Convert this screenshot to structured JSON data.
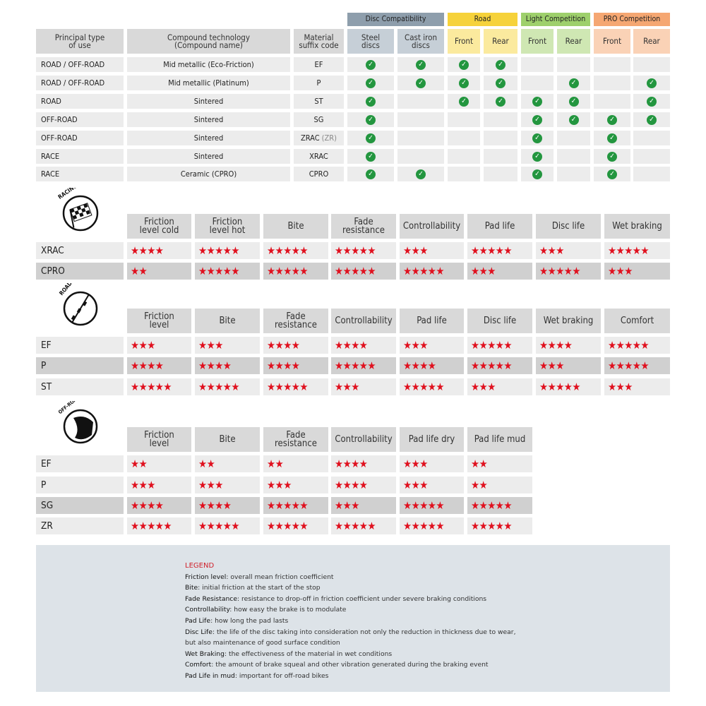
{
  "compatibility": {
    "groups": [
      {
        "label": "Disc Compatibility",
        "color": "#8e9eac",
        "sub_color": "#c6cfd7"
      },
      {
        "label": "Road",
        "color": "#f6d23a",
        "sub_color": "#fbea9e"
      },
      {
        "label": "Light Competition",
        "color": "#9ed06c",
        "sub_color": "#cfe7b3"
      },
      {
        "label": "PRO Competition",
        "color": "#f5a772",
        "sub_color": "#fad2b6"
      }
    ],
    "headers": [
      "Principal type\nof use",
      "Compound technology\n(Compound name)",
      "Material\nsuffix code",
      "Steel\ndiscs",
      "Cast iron\ndiscs",
      "Front",
      "Rear",
      "Front",
      "Rear",
      "Front",
      "Rear"
    ],
    "check_color": "#23963f",
    "rows": [
      {
        "use": "ROAD / OFF-ROAD",
        "compound": "Mid metallic (Eco-Friction)",
        "code": "EF",
        "code_extra": "",
        "checks": [
          true,
          true,
          true,
          true,
          false,
          false,
          false,
          false
        ]
      },
      {
        "use": "ROAD / OFF-ROAD",
        "compound": "Mid metallic (Platinum)",
        "code": "P",
        "code_extra": "",
        "checks": [
          true,
          true,
          true,
          true,
          false,
          true,
          false,
          true
        ]
      },
      {
        "use": "ROAD",
        "compound": "Sintered",
        "code": "ST",
        "code_extra": "",
        "checks": [
          true,
          false,
          true,
          true,
          true,
          true,
          false,
          true
        ]
      },
      {
        "use": "OFF-ROAD",
        "compound": "Sintered",
        "code": "SG",
        "code_extra": "",
        "checks": [
          true,
          false,
          false,
          false,
          true,
          true,
          true,
          true
        ]
      },
      {
        "use": "OFF-ROAD",
        "compound": "Sintered",
        "code": "ZRAC",
        "code_extra": "(ZR)",
        "checks": [
          true,
          false,
          false,
          false,
          true,
          false,
          true,
          false
        ]
      },
      {
        "use": "RACE",
        "compound": "Sintered",
        "code": "XRAC",
        "code_extra": "",
        "checks": [
          true,
          false,
          false,
          false,
          true,
          false,
          true,
          false
        ]
      },
      {
        "use": "RACE",
        "compound": "Ceramic (CPRO)",
        "code": "CPRO",
        "code_extra": "",
        "checks": [
          true,
          true,
          false,
          false,
          true,
          false,
          true,
          false
        ]
      }
    ]
  },
  "ratings": [
    {
      "icon_label": "RACING",
      "icon": "checkered-flag-icon",
      "headers": [
        "Friction\nlevel cold",
        "Friction\nlevel hot",
        "Bite",
        "Fade\nresistance",
        "Controllability",
        "Pad life",
        "Disc life",
        "Wet braking"
      ],
      "rows": [
        {
          "code": "XRAC",
          "shaded": false,
          "stars": [
            4,
            5,
            5,
            5,
            3,
            5,
            3,
            5
          ]
        },
        {
          "code": "CPRO",
          "shaded": true,
          "stars": [
            2,
            5,
            5,
            5,
            5,
            3,
            5,
            3
          ]
        }
      ]
    },
    {
      "icon_label": "ROAD",
      "icon": "road-icon",
      "headers": [
        "Friction\nlevel",
        "Bite",
        "Fade\nresistance",
        "Controllability",
        "Pad life",
        "Disc life",
        "Wet braking",
        "Comfort"
      ],
      "rows": [
        {
          "code": "EF",
          "shaded": false,
          "stars": [
            3,
            3,
            4,
            4,
            3,
            5,
            4,
            5
          ]
        },
        {
          "code": "P",
          "shaded": true,
          "stars": [
            4,
            4,
            4,
            5,
            4,
            5,
            3,
            5
          ]
        },
        {
          "code": "ST",
          "shaded": false,
          "stars": [
            5,
            5,
            5,
            3,
            5,
            3,
            5,
            3
          ]
        }
      ]
    },
    {
      "icon_label": "OFF-ROAD",
      "icon": "off-road-icon",
      "headers": [
        "Friction\nlevel",
        "Bite",
        "Fade\nresistance",
        "Controllability",
        "Pad life dry",
        "Pad life mud"
      ],
      "rows": [
        {
          "code": "EF",
          "shaded": false,
          "stars": [
            2,
            2,
            2,
            4,
            3,
            2
          ]
        },
        {
          "code": "P",
          "shaded": false,
          "stars": [
            3,
            3,
            3,
            4,
            3,
            2
          ]
        },
        {
          "code": "SG",
          "shaded": true,
          "stars": [
            4,
            4,
            5,
            3,
            5,
            5
          ]
        },
        {
          "code": "ZR",
          "shaded": false,
          "stars": [
            5,
            5,
            5,
            5,
            5,
            5
          ]
        }
      ]
    }
  ],
  "star_color": "#e0101e",
  "legend": {
    "title": "LEGEND",
    "items": [
      {
        "term": "Friction level",
        "desc": ": overall mean friction coefficient"
      },
      {
        "term": "Bite",
        "desc": ": initial friction at the start of the stop"
      },
      {
        "term": "Fade Resistance",
        "desc": ": resistance to drop-off in friction coefficient under severe braking conditions"
      },
      {
        "term": "Controllability",
        "desc": ": how easy the brake is to modulate"
      },
      {
        "term": "Pad Life",
        "desc": ": how long the pad lasts"
      },
      {
        "term": "Disc Life",
        "desc": ": the life of the disc taking into consideration not only the reduction in thickness due to wear,"
      },
      {
        "term": "",
        "desc": "but also maintenance of good surface condition"
      },
      {
        "term": "Wet Braking",
        "desc": ": the effectiveness of the material in wet conditions"
      },
      {
        "term": "Comfort",
        "desc": ": the amount of brake squeal and other vibration generated during the braking event"
      },
      {
        "term": "Pad Life in mud",
        "desc": ": important for off-road bikes"
      }
    ]
  }
}
